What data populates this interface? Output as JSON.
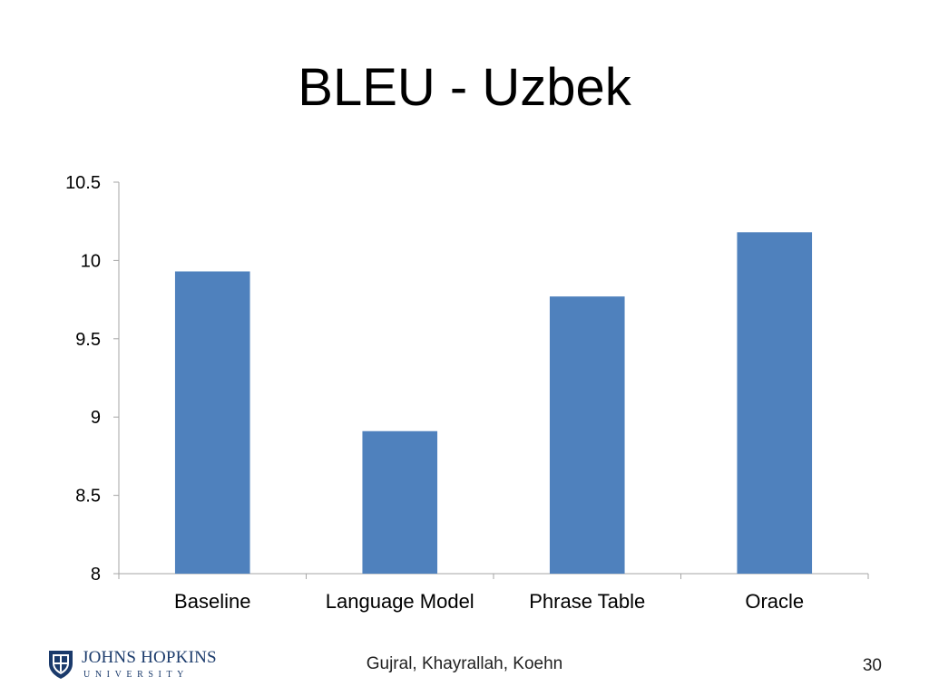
{
  "slide": {
    "title": "BLEU - Uzbek",
    "footer_authors": "Gujral, Khayrallah, Koehn",
    "slide_number": "30",
    "logo": {
      "line1": "JOHNS HOPKINS",
      "line2": "UNIVERSITY",
      "icon": "jhu-shield-icon"
    }
  },
  "chart_data": {
    "type": "bar",
    "title": "",
    "xlabel": "",
    "ylabel": "",
    "categories": [
      "Baseline",
      "Language Model",
      "Phrase Table",
      "Oracle"
    ],
    "values": [
      9.93,
      8.91,
      9.77,
      10.18
    ],
    "ylim": [
      8,
      10.5
    ],
    "yticks": [
      "8",
      "8.5",
      "9",
      "9.5",
      "10",
      "10.5"
    ],
    "grid": false,
    "legend": "none",
    "bar_color": "#4f81bd",
    "axis_color": "#a6a6a6"
  }
}
